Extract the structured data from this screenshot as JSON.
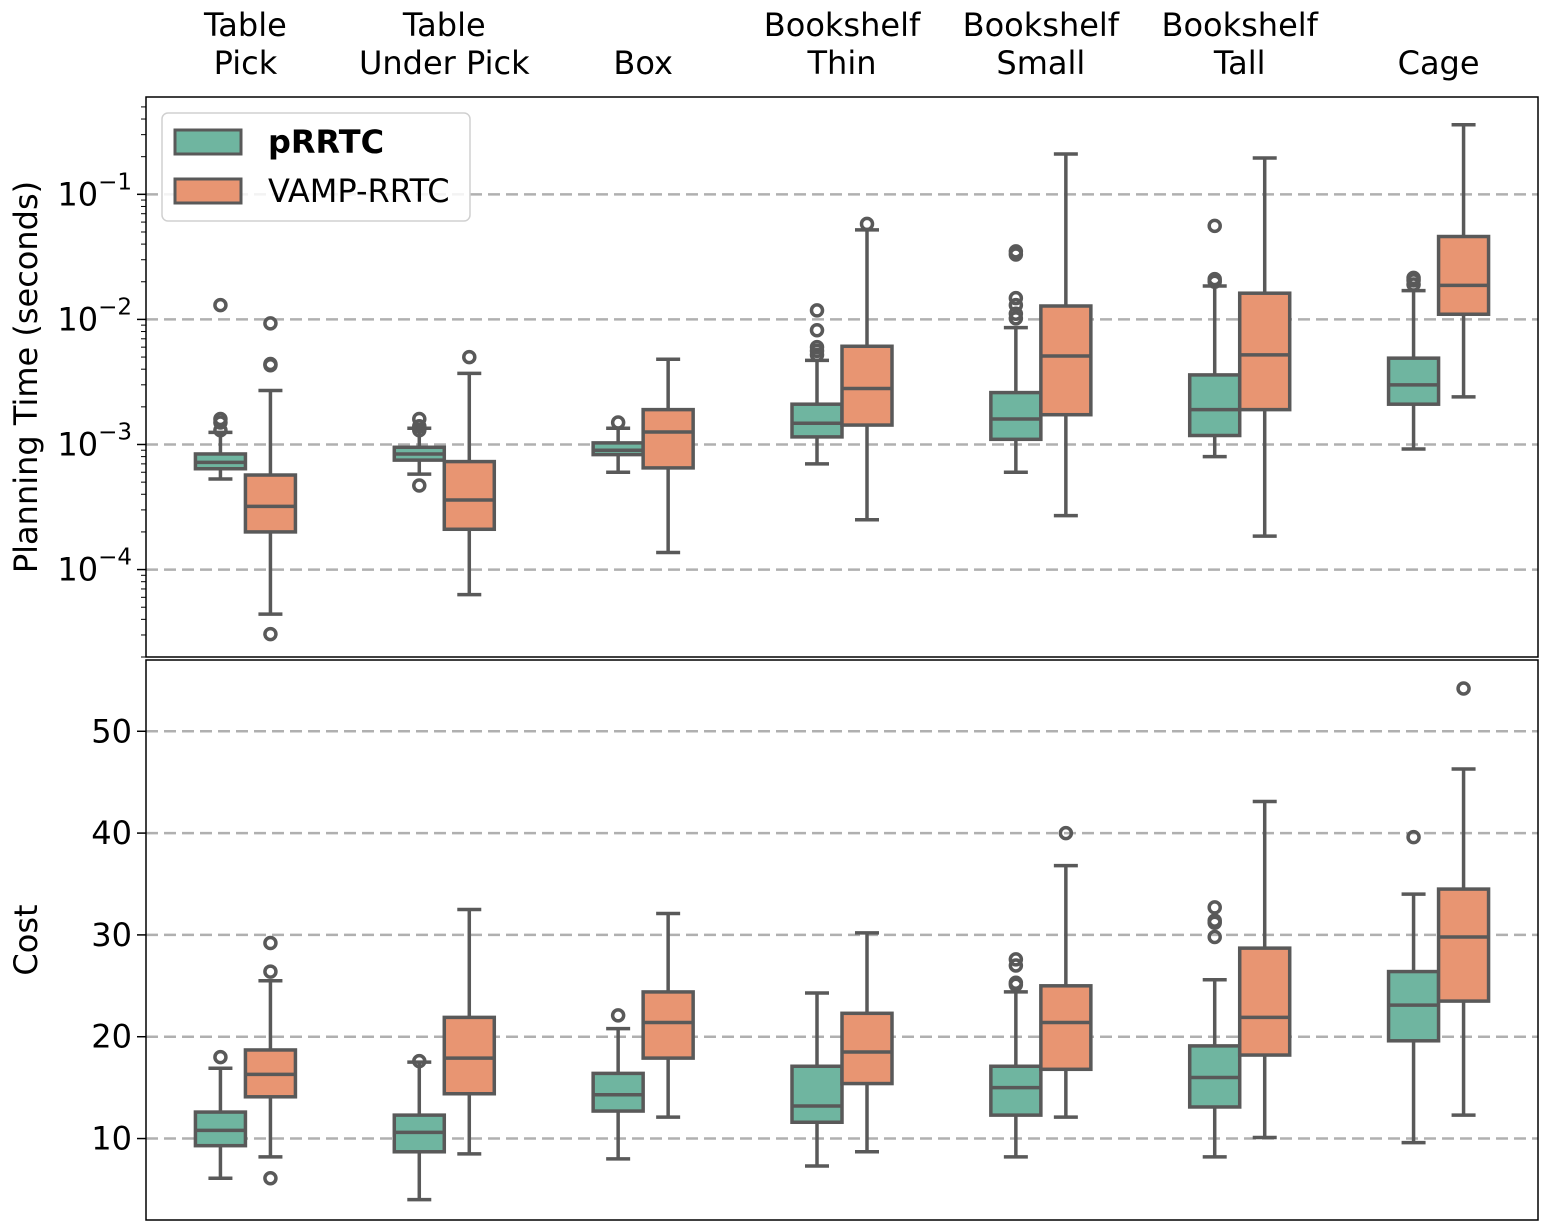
{
  "chart_data": [
    {
      "type": "box",
      "ylabel": "Planning Time (seconds)",
      "yscale": "log",
      "ylim": [
        2e-05,
        0.6
      ],
      "yticks": [
        {
          "value": 0.0001,
          "label": "10",
          "exp": "−4"
        },
        {
          "value": 0.001,
          "label": "10",
          "exp": "−3"
        },
        {
          "value": 0.01,
          "label": "10",
          "exp": "−2"
        },
        {
          "value": 0.1,
          "label": "10",
          "exp": "−1"
        }
      ],
      "grid": true,
      "legend": {
        "placement": "top-left",
        "entries": [
          {
            "label": "pRRTC",
            "bold": true,
            "color": "#6fb5a0"
          },
          {
            "label": "VAMP-RRTC",
            "bold": false,
            "color": "#e89572"
          }
        ]
      },
      "categories": [
        {
          "line1": "Table",
          "line2": "Pick"
        },
        {
          "line1": "Table",
          "line2": "Under Pick"
        },
        {
          "line1": "",
          "line2": "Box"
        },
        {
          "line1": "Bookshelf",
          "line2": "Thin"
        },
        {
          "line1": "Bookshelf",
          "line2": "Small"
        },
        {
          "line1": "Bookshelf",
          "line2": "Tall"
        },
        {
          "line1": "",
          "line2": "Cage"
        }
      ],
      "series": [
        {
          "name": "pRRTC",
          "color": "#6fb5a0",
          "boxes": [
            {
              "whislo": 0.00053,
              "q1": 0.00064,
              "med": 0.00072,
              "q3": 0.00084,
              "whishi": 0.00125,
              "fliers": [
                0.0013,
                0.0015,
                0.0016,
                0.013
              ]
            },
            {
              "whislo": 0.00058,
              "q1": 0.00075,
              "med": 0.00084,
              "q3": 0.00095,
              "whishi": 0.00135,
              "fliers": [
                0.00047,
                0.0013,
                0.0014,
                0.0016
              ]
            },
            {
              "whislo": 0.0006,
              "q1": 0.00083,
              "med": 0.0009,
              "q3": 0.00103,
              "whishi": 0.00135,
              "fliers": [
                0.0015
              ]
            },
            {
              "whislo": 0.0007,
              "q1": 0.00115,
              "med": 0.00148,
              "q3": 0.0021,
              "whishi": 0.0047,
              "fliers": [
                0.0052,
                0.0056,
                0.006,
                0.0082,
                0.0118
              ]
            },
            {
              "whislo": 0.0006,
              "q1": 0.0011,
              "med": 0.0016,
              "q3": 0.0026,
              "whishi": 0.0086,
              "fliers": [
                0.0102,
                0.0111,
                0.013,
                0.0148,
                0.033,
                0.035
              ]
            },
            {
              "whislo": 0.0008,
              "q1": 0.00118,
              "med": 0.0019,
              "q3": 0.0036,
              "whishi": 0.0185,
              "fliers": [
                0.02,
                0.021,
                0.056
              ]
            },
            {
              "whislo": 0.00092,
              "q1": 0.0021,
              "med": 0.003,
              "q3": 0.0049,
              "whishi": 0.017,
              "fliers": [
                0.019,
                0.0205,
                0.0215
              ]
            }
          ]
        },
        {
          "name": "VAMP-RRTC",
          "color": "#e89572",
          "boxes": [
            {
              "whislo": 4.4e-05,
              "q1": 0.0002,
              "med": 0.00032,
              "q3": 0.00057,
              "whishi": 0.0027,
              "fliers": [
                3.05e-05,
                0.0043,
                0.0044,
                0.0093
              ]
            },
            {
              "whislo": 6.3e-05,
              "q1": 0.00021,
              "med": 0.00036,
              "q3": 0.00073,
              "whishi": 0.0037,
              "fliers": [
                0.005
              ]
            },
            {
              "whislo": 0.000137,
              "q1": 0.00065,
              "med": 0.00126,
              "q3": 0.0019,
              "whishi": 0.0048,
              "fliers": []
            },
            {
              "whislo": 0.00025,
              "q1": 0.00143,
              "med": 0.0028,
              "q3": 0.0061,
              "whishi": 0.052,
              "fliers": [
                0.058
              ]
            },
            {
              "whislo": 0.00027,
              "q1": 0.00173,
              "med": 0.0051,
              "q3": 0.0128,
              "whishi": 0.21,
              "fliers": []
            },
            {
              "whislo": 0.000185,
              "q1": 0.0019,
              "med": 0.0052,
              "q3": 0.0162,
              "whishi": 0.195,
              "fliers": []
            },
            {
              "whislo": 0.0024,
              "q1": 0.011,
              "med": 0.0187,
              "q3": 0.046,
              "whishi": 0.36,
              "fliers": []
            }
          ]
        }
      ]
    },
    {
      "type": "box",
      "ylabel": "Cost",
      "yscale": "linear",
      "ylim": [
        2,
        57
      ],
      "yticks": [
        {
          "value": 10,
          "label": "10"
        },
        {
          "value": 20,
          "label": "20"
        },
        {
          "value": 30,
          "label": "30"
        },
        {
          "value": 40,
          "label": "40"
        },
        {
          "value": 50,
          "label": "50"
        }
      ],
      "grid": true,
      "series": [
        {
          "name": "pRRTC",
          "color": "#6fb5a0",
          "boxes": [
            {
              "whislo": 6.1,
              "q1": 9.3,
              "med": 10.8,
              "q3": 12.6,
              "whishi": 16.9,
              "fliers": [
                18.0
              ]
            },
            {
              "whislo": 4.0,
              "q1": 8.7,
              "med": 10.6,
              "q3": 12.3,
              "whishi": 17.5,
              "fliers": [
                17.6
              ]
            },
            {
              "whislo": 8.0,
              "q1": 12.7,
              "med": 14.3,
              "q3": 16.4,
              "whishi": 20.8,
              "fliers": [
                22.1
              ]
            },
            {
              "whislo": 7.3,
              "q1": 11.6,
              "med": 13.2,
              "q3": 17.1,
              "whishi": 24.3,
              "fliers": []
            },
            {
              "whislo": 8.2,
              "q1": 12.3,
              "med": 15.0,
              "q3": 17.1,
              "whishi": 24.4,
              "fliers": [
                25.1,
                25.3,
                27.0,
                27.6
              ]
            },
            {
              "whislo": 8.2,
              "q1": 13.1,
              "med": 16.0,
              "q3": 19.1,
              "whishi": 25.6,
              "fliers": [
                29.8,
                31.2,
                31.4,
                32.7
              ]
            },
            {
              "whislo": 9.6,
              "q1": 19.6,
              "med": 23.1,
              "q3": 26.4,
              "whishi": 34.0,
              "fliers": [
                39.6
              ]
            }
          ]
        },
        {
          "name": "VAMP-RRTC",
          "color": "#e89572",
          "boxes": [
            {
              "whislo": 8.2,
              "q1": 14.1,
              "med": 16.3,
              "q3": 18.7,
              "whishi": 25.5,
              "fliers": [
                6.1,
                26.4,
                29.2
              ]
            },
            {
              "whislo": 8.5,
              "q1": 14.4,
              "med": 17.9,
              "q3": 21.9,
              "whishi": 32.5,
              "fliers": []
            },
            {
              "whislo": 12.1,
              "q1": 17.9,
              "med": 21.4,
              "q3": 24.4,
              "whishi": 32.1,
              "fliers": []
            },
            {
              "whislo": 8.7,
              "q1": 15.4,
              "med": 18.5,
              "q3": 22.3,
              "whishi": 30.2,
              "fliers": []
            },
            {
              "whislo": 12.1,
              "q1": 16.8,
              "med": 21.4,
              "q3": 25.0,
              "whishi": 36.8,
              "fliers": [
                40.0
              ]
            },
            {
              "whislo": 10.1,
              "q1": 18.2,
              "med": 21.9,
              "q3": 28.7,
              "whishi": 43.1,
              "fliers": []
            },
            {
              "whislo": 12.3,
              "q1": 23.5,
              "med": 29.8,
              "q3": 34.5,
              "whishi": 46.3,
              "fliers": [
                54.2
              ]
            }
          ]
        }
      ]
    }
  ]
}
